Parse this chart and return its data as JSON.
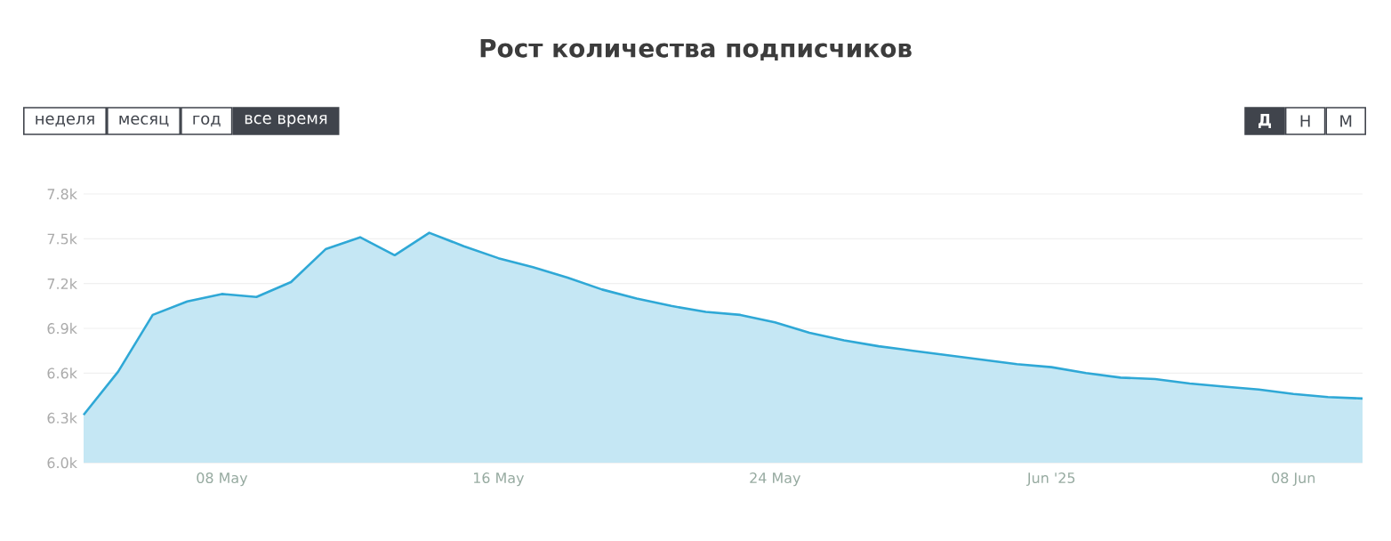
{
  "chart_data": {
    "type": "area",
    "title": "Рост количества подписчиков",
    "x": [
      "2025-05-04",
      "2025-05-05",
      "2025-05-06",
      "2025-05-07",
      "2025-05-08",
      "2025-05-09",
      "2025-05-10",
      "2025-05-11",
      "2025-05-12",
      "2025-05-13",
      "2025-05-14",
      "2025-05-15",
      "2025-05-16",
      "2025-05-17",
      "2025-05-18",
      "2025-05-19",
      "2025-05-20",
      "2025-05-21",
      "2025-05-22",
      "2025-05-23",
      "2025-05-24",
      "2025-05-25",
      "2025-05-26",
      "2025-05-27",
      "2025-05-28",
      "2025-05-29",
      "2025-05-30",
      "2025-05-31",
      "2025-06-01",
      "2025-06-02",
      "2025-06-03",
      "2025-06-04",
      "2025-06-05",
      "2025-06-06",
      "2025-06-07",
      "2025-06-08",
      "2025-06-09",
      "2025-06-10"
    ],
    "series": [
      {
        "color": "#2fa8d6",
        "values": [
          6320,
          6610,
          6990,
          7080,
          7130,
          7110,
          7210,
          7430,
          7510,
          7390,
          7540,
          7450,
          7370,
          7310,
          7240,
          7160,
          7100,
          7050,
          7010,
          6990,
          6940,
          6870,
          6820,
          6780,
          6750,
          6720,
          6690,
          6660,
          6640,
          6600,
          6570,
          6560,
          6530,
          6510,
          6490,
          6460,
          6440,
          6430
        ]
      }
    ],
    "xlim": [
      "2025-05-04",
      "2025-06-10"
    ],
    "xticks": [
      {
        "value": "2025-05-08",
        "label": "08 May"
      },
      {
        "value": "2025-05-16",
        "label": "16 May"
      },
      {
        "value": "2025-05-24",
        "label": "24 May"
      },
      {
        "value": "2025-06-01",
        "label": "Jun '25"
      },
      {
        "value": "2025-06-08",
        "label": "08 Jun"
      }
    ],
    "ylim": [
      6000,
      7800
    ],
    "yticks": [
      {
        "value": 6000,
        "label": "6.0k"
      },
      {
        "value": 6300,
        "label": "6.3k"
      },
      {
        "value": 6600,
        "label": "6.6k"
      },
      {
        "value": 6900,
        "label": "6.9k"
      },
      {
        "value": 7200,
        "label": "7.2k"
      },
      {
        "value": 7500,
        "label": "7.5k"
      },
      {
        "value": 7800,
        "label": "7.8k"
      }
    ],
    "grid": "y",
    "annotations": [
      "неделя",
      "месяц",
      "год",
      "все время",
      "Д",
      "Н",
      "М"
    ]
  }
}
